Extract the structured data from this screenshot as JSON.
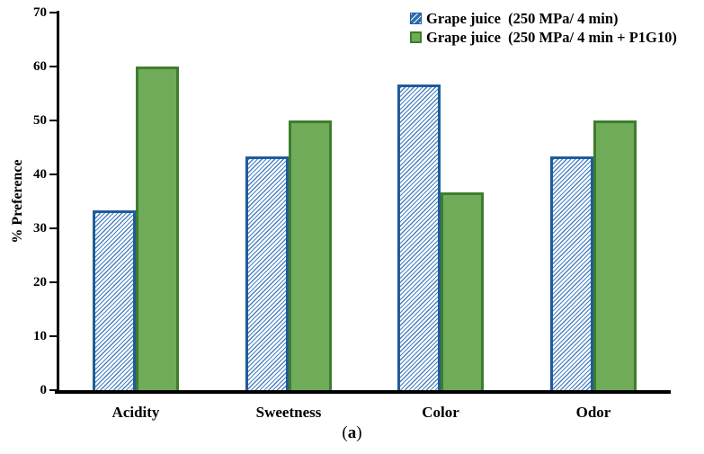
{
  "figure": {
    "caption_text": "a",
    "caption_open": "(",
    "caption_close": ")"
  },
  "chart_data": {
    "type": "bar",
    "title": "",
    "categories": [
      "Acidity",
      "Sweetness",
      "Color",
      "Odor"
    ],
    "series": [
      {
        "name": "Grape juice  (250 MPa/ 4 min)",
        "values": [
          33.3,
          43.3,
          56.7,
          43.3
        ],
        "fill_style": "diagonal-hatch",
        "hatch_line_color": "#4a81c2",
        "hatch_bg_color": "#ffffff",
        "legend_swatch_color": "#2e6db4",
        "border_color": "#1f5c99"
      },
      {
        "name": "Grape juice  (250 MPa/ 4 min + P1G10)",
        "values": [
          60,
          50,
          36.7,
          50
        ],
        "fill_style": "solid",
        "fill_color": "#6fab58",
        "legend_swatch_color": "#6fab58",
        "border_color": "#3e7d2c"
      }
    ],
    "xlabel": "",
    "ylabel": "% Preference",
    "ylim": [
      0,
      70
    ],
    "yticks": [
      0,
      10,
      20,
      30,
      40,
      50,
      60,
      70
    ],
    "grid": false,
    "legend_position": "top-right",
    "axis_color": "#000000"
  }
}
